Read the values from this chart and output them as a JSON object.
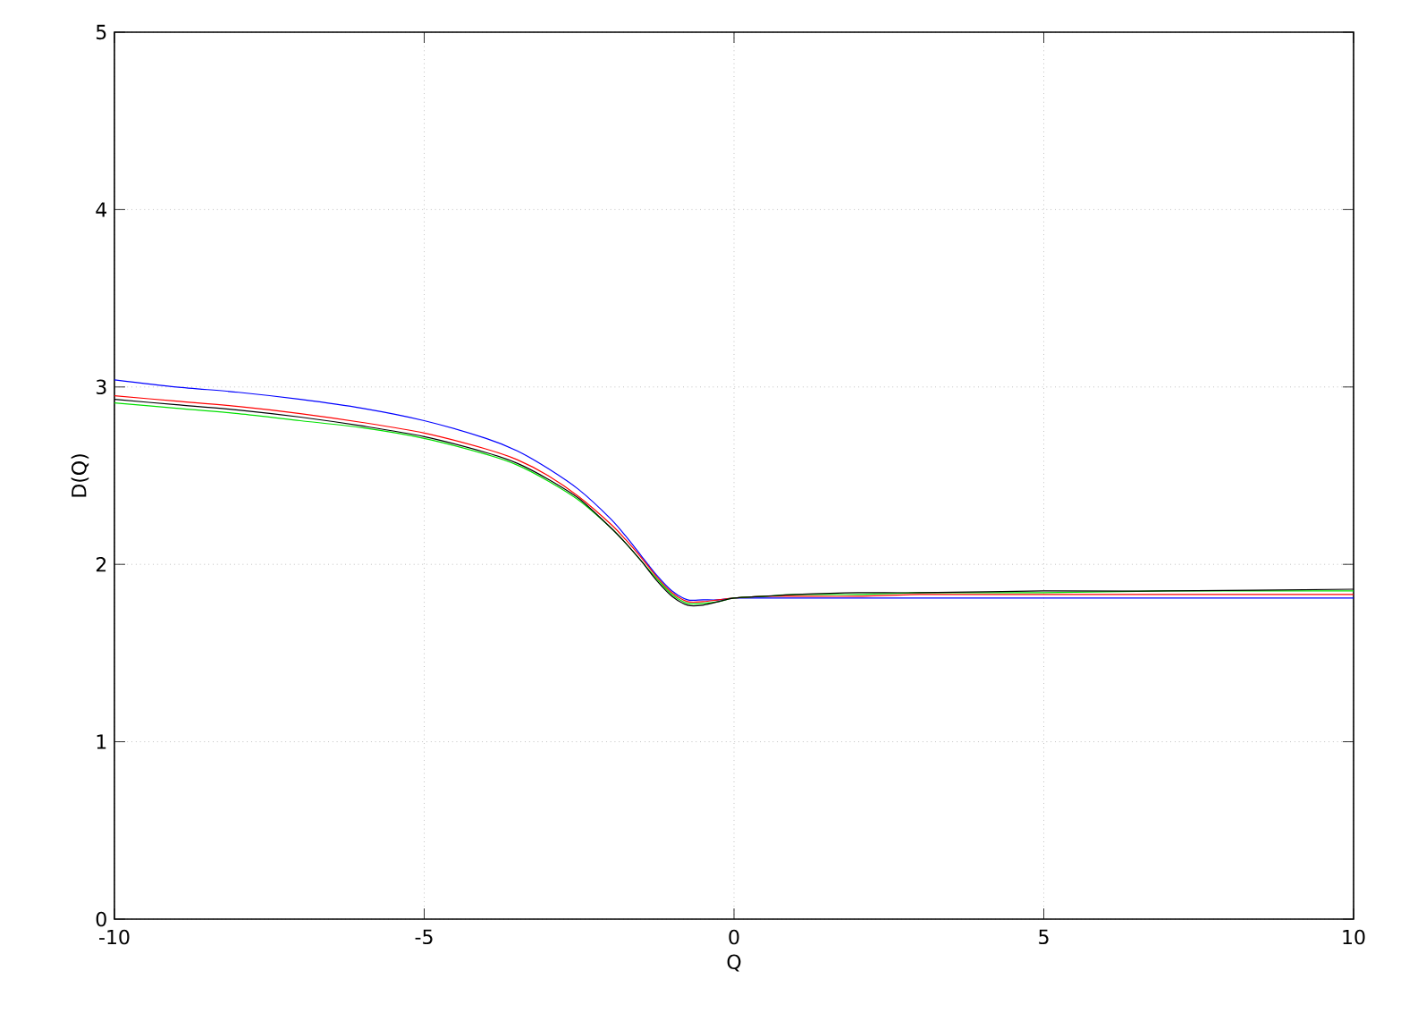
{
  "chart_data": {
    "type": "line",
    "xlabel": "Q",
    "ylabel": "D(Q)",
    "x": [
      -10,
      -9,
      -8,
      -7,
      -6,
      -5,
      -4,
      -3.5,
      -3,
      -2.5,
      -2,
      -1.75,
      -1.5,
      -1.25,
      -1,
      -0.75,
      -0.5,
      -0.25,
      0,
      0.5,
      1,
      2,
      3,
      5,
      7,
      10
    ],
    "series": [
      {
        "color": "#0000ff",
        "values": [
          3.04,
          3.0,
          2.97,
          2.93,
          2.88,
          2.81,
          2.71,
          2.64,
          2.54,
          2.42,
          2.26,
          2.16,
          2.05,
          1.94,
          1.85,
          1.8,
          1.8,
          1.8,
          1.81,
          1.81,
          1.81,
          1.81,
          1.81,
          1.81,
          1.81,
          1.81
        ]
      },
      {
        "color": "#ff0000",
        "values": [
          2.95,
          2.92,
          2.89,
          2.85,
          2.8,
          2.74,
          2.65,
          2.59,
          2.5,
          2.38,
          2.23,
          2.14,
          2.04,
          1.93,
          1.84,
          1.79,
          1.79,
          1.8,
          1.81,
          1.82,
          1.82,
          1.82,
          1.83,
          1.83,
          1.83,
          1.83
        ]
      },
      {
        "color": "#00e000",
        "values": [
          2.91,
          2.88,
          2.85,
          2.81,
          2.77,
          2.71,
          2.62,
          2.56,
          2.47,
          2.36,
          2.21,
          2.12,
          2.02,
          1.92,
          1.83,
          1.78,
          1.78,
          1.79,
          1.81,
          1.82,
          1.83,
          1.83,
          1.84,
          1.84,
          1.85,
          1.85
        ]
      },
      {
        "color": "#000000",
        "values": [
          2.93,
          2.9,
          2.87,
          2.83,
          2.78,
          2.72,
          2.63,
          2.57,
          2.48,
          2.37,
          2.21,
          2.12,
          2.02,
          1.91,
          1.82,
          1.77,
          1.77,
          1.79,
          1.81,
          1.82,
          1.83,
          1.84,
          1.84,
          1.85,
          1.85,
          1.86
        ]
      }
    ],
    "xlim": [
      -10,
      10
    ],
    "ylim": [
      0,
      5
    ],
    "xticks": [
      -10,
      -5,
      0,
      5,
      10
    ],
    "yticks": [
      0,
      1,
      2,
      3,
      4,
      5
    ],
    "grid": true,
    "marker": "none",
    "line_style": "solid"
  }
}
